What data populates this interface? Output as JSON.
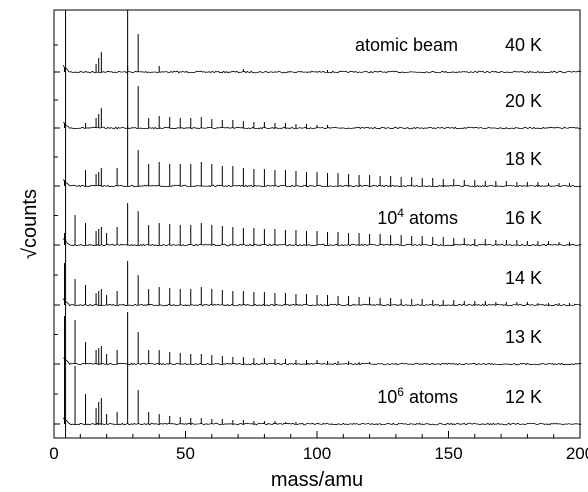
{
  "chart_data": {
    "type": "line",
    "title": "",
    "xlabel": "mass/amu",
    "ylabel": "√counts",
    "xlim": [
      0,
      200
    ],
    "xticks": [
      0,
      50,
      100,
      150,
      200
    ],
    "grid": false,
    "stacked_offset_traces": true,
    "series": [
      {
        "temperature": "40 K",
        "note": "atomic beam",
        "peaks": [
          {
            "x": 4,
            "h": 4
          },
          {
            "x": 16,
            "h": 8
          },
          {
            "x": 17,
            "h": 14
          },
          {
            "x": 18,
            "h": 20
          },
          {
            "x": 28,
            "h": 62
          },
          {
            "x": 32,
            "h": 38
          },
          {
            "x": 40,
            "h": 6
          },
          {
            "x": 72,
            "h": 3
          },
          {
            "x": 104,
            "h": 2
          }
        ]
      },
      {
        "temperature": "20 K",
        "note": "",
        "peaks": [
          {
            "x": 4,
            "h": 5
          },
          {
            "x": 12,
            "h": 5
          },
          {
            "x": 16,
            "h": 10
          },
          {
            "x": 17,
            "h": 14
          },
          {
            "x": 18,
            "h": 20
          },
          {
            "x": 28,
            "h": 62
          },
          {
            "x": 32,
            "h": 42
          },
          {
            "x": 36,
            "h": 10
          },
          {
            "x": 40,
            "h": 12
          },
          {
            "x": 44,
            "h": 11
          },
          {
            "x": 48,
            "h": 10
          },
          {
            "x": 52,
            "h": 10
          },
          {
            "x": 56,
            "h": 11
          },
          {
            "x": 60,
            "h": 9
          },
          {
            "x": 64,
            "h": 8
          },
          {
            "x": 68,
            "h": 8
          },
          {
            "x": 72,
            "h": 7
          },
          {
            "x": 76,
            "h": 6
          },
          {
            "x": 80,
            "h": 6
          },
          {
            "x": 84,
            "h": 5
          },
          {
            "x": 88,
            "h": 5
          },
          {
            "x": 92,
            "h": 4
          },
          {
            "x": 96,
            "h": 4
          },
          {
            "x": 100,
            "h": 3
          },
          {
            "x": 104,
            "h": 3
          }
        ]
      },
      {
        "temperature": "18 K",
        "note": "",
        "peaks": [
          {
            "x": 4,
            "h": 6
          },
          {
            "x": 12,
            "h": 16
          },
          {
            "x": 16,
            "h": 12
          },
          {
            "x": 17,
            "h": 14
          },
          {
            "x": 18,
            "h": 18
          },
          {
            "x": 24,
            "h": 18
          },
          {
            "x": 28,
            "h": 60
          },
          {
            "x": 32,
            "h": 36
          },
          {
            "x": 36,
            "h": 22
          },
          {
            "x": 40,
            "h": 24
          },
          {
            "x": 44,
            "h": 22
          },
          {
            "x": 48,
            "h": 22
          },
          {
            "x": 52,
            "h": 22
          },
          {
            "x": 56,
            "h": 24
          },
          {
            "x": 60,
            "h": 22
          },
          {
            "x": 64,
            "h": 20
          },
          {
            "x": 68,
            "h": 20
          },
          {
            "x": 72,
            "h": 18
          },
          {
            "x": 76,
            "h": 17
          },
          {
            "x": 80,
            "h": 17
          },
          {
            "x": 84,
            "h": 16
          },
          {
            "x": 88,
            "h": 16
          },
          {
            "x": 92,
            "h": 15
          },
          {
            "x": 96,
            "h": 14
          },
          {
            "x": 100,
            "h": 14
          },
          {
            "x": 104,
            "h": 13
          },
          {
            "x": 108,
            "h": 13
          },
          {
            "x": 112,
            "h": 12
          },
          {
            "x": 116,
            "h": 11
          },
          {
            "x": 120,
            "h": 11
          },
          {
            "x": 124,
            "h": 10
          },
          {
            "x": 128,
            "h": 10
          },
          {
            "x": 132,
            "h": 9
          },
          {
            "x": 136,
            "h": 9
          },
          {
            "x": 140,
            "h": 8
          },
          {
            "x": 144,
            "h": 8
          },
          {
            "x": 148,
            "h": 7
          },
          {
            "x": 152,
            "h": 7
          },
          {
            "x": 156,
            "h": 6
          },
          {
            "x": 160,
            "h": 6
          },
          {
            "x": 164,
            "h": 5
          },
          {
            "x": 168,
            "h": 5
          },
          {
            "x": 172,
            "h": 5
          },
          {
            "x": 176,
            "h": 4
          },
          {
            "x": 180,
            "h": 4
          },
          {
            "x": 184,
            "h": 4
          },
          {
            "x": 188,
            "h": 3
          },
          {
            "x": 192,
            "h": 3
          },
          {
            "x": 196,
            "h": 3
          },
          {
            "x": 200,
            "h": 3
          }
        ]
      },
      {
        "temperature": "16 K",
        "note": "10^4 atoms",
        "peaks": [
          {
            "x": 4,
            "h": 12
          },
          {
            "x": 8,
            "h": 30
          },
          {
            "x": 12,
            "h": 22
          },
          {
            "x": 16,
            "h": 14
          },
          {
            "x": 17,
            "h": 16
          },
          {
            "x": 18,
            "h": 18
          },
          {
            "x": 20,
            "h": 12
          },
          {
            "x": 24,
            "h": 18
          },
          {
            "x": 28,
            "h": 42
          },
          {
            "x": 32,
            "h": 34
          },
          {
            "x": 36,
            "h": 20
          },
          {
            "x": 40,
            "h": 22
          },
          {
            "x": 44,
            "h": 21
          },
          {
            "x": 48,
            "h": 20
          },
          {
            "x": 52,
            "h": 20
          },
          {
            "x": 56,
            "h": 22
          },
          {
            "x": 60,
            "h": 20
          },
          {
            "x": 64,
            "h": 19
          },
          {
            "x": 68,
            "h": 18
          },
          {
            "x": 72,
            "h": 17
          },
          {
            "x": 76,
            "h": 17
          },
          {
            "x": 80,
            "h": 16
          },
          {
            "x": 84,
            "h": 16
          },
          {
            "x": 88,
            "h": 15
          },
          {
            "x": 92,
            "h": 15
          },
          {
            "x": 96,
            "h": 14
          },
          {
            "x": 100,
            "h": 14
          },
          {
            "x": 104,
            "h": 13
          },
          {
            "x": 108,
            "h": 13
          },
          {
            "x": 112,
            "h": 12
          },
          {
            "x": 116,
            "h": 12
          },
          {
            "x": 120,
            "h": 11
          },
          {
            "x": 124,
            "h": 11
          },
          {
            "x": 128,
            "h": 10
          },
          {
            "x": 132,
            "h": 10
          },
          {
            "x": 136,
            "h": 9
          },
          {
            "x": 140,
            "h": 9
          },
          {
            "x": 144,
            "h": 8
          },
          {
            "x": 148,
            "h": 8
          },
          {
            "x": 152,
            "h": 7
          },
          {
            "x": 156,
            "h": 7
          },
          {
            "x": 160,
            "h": 6
          },
          {
            "x": 164,
            "h": 6
          },
          {
            "x": 168,
            "h": 5
          },
          {
            "x": 172,
            "h": 5
          },
          {
            "x": 176,
            "h": 5
          },
          {
            "x": 180,
            "h": 4
          },
          {
            "x": 184,
            "h": 4
          },
          {
            "x": 188,
            "h": 4
          },
          {
            "x": 192,
            "h": 3
          },
          {
            "x": 196,
            "h": 3
          },
          {
            "x": 200,
            "h": 3
          }
        ]
      },
      {
        "temperature": "14 K",
        "note": "",
        "peaks": [
          {
            "x": 4,
            "h": 42
          },
          {
            "x": 8,
            "h": 26
          },
          {
            "x": 12,
            "h": 20
          },
          {
            "x": 16,
            "h": 12
          },
          {
            "x": 17,
            "h": 14
          },
          {
            "x": 18,
            "h": 16
          },
          {
            "x": 20,
            "h": 10
          },
          {
            "x": 24,
            "h": 14
          },
          {
            "x": 28,
            "h": 44
          },
          {
            "x": 32,
            "h": 30
          },
          {
            "x": 36,
            "h": 16
          },
          {
            "x": 40,
            "h": 18
          },
          {
            "x": 44,
            "h": 17
          },
          {
            "x": 48,
            "h": 16
          },
          {
            "x": 52,
            "h": 16
          },
          {
            "x": 56,
            "h": 18
          },
          {
            "x": 60,
            "h": 16
          },
          {
            "x": 64,
            "h": 15
          },
          {
            "x": 68,
            "h": 14
          },
          {
            "x": 72,
            "h": 14
          },
          {
            "x": 76,
            "h": 13
          },
          {
            "x": 80,
            "h": 13
          },
          {
            "x": 84,
            "h": 12
          },
          {
            "x": 88,
            "h": 12
          },
          {
            "x": 92,
            "h": 11
          },
          {
            "x": 96,
            "h": 11
          },
          {
            "x": 100,
            "h": 10
          },
          {
            "x": 104,
            "h": 10
          },
          {
            "x": 108,
            "h": 9
          },
          {
            "x": 112,
            "h": 9
          },
          {
            "x": 116,
            "h": 8
          },
          {
            "x": 120,
            "h": 8
          },
          {
            "x": 124,
            "h": 7
          },
          {
            "x": 128,
            "h": 7
          },
          {
            "x": 132,
            "h": 6
          },
          {
            "x": 136,
            "h": 6
          },
          {
            "x": 140,
            "h": 6
          },
          {
            "x": 144,
            "h": 5
          },
          {
            "x": 148,
            "h": 5
          },
          {
            "x": 152,
            "h": 5
          },
          {
            "x": 156,
            "h": 4
          },
          {
            "x": 160,
            "h": 4
          },
          {
            "x": 164,
            "h": 4
          },
          {
            "x": 168,
            "h": 3
          },
          {
            "x": 172,
            "h": 3
          },
          {
            "x": 176,
            "h": 3
          },
          {
            "x": 180,
            "h": 3
          },
          {
            "x": 184,
            "h": 2
          },
          {
            "x": 188,
            "h": 2
          },
          {
            "x": 192,
            "h": 2
          },
          {
            "x": 196,
            "h": 2
          },
          {
            "x": 200,
            "h": 2
          }
        ]
      },
      {
        "temperature": "13 K",
        "note": "",
        "peaks": [
          {
            "x": 4,
            "h": 48
          },
          {
            "x": 8,
            "h": 44
          },
          {
            "x": 12,
            "h": 22
          },
          {
            "x": 16,
            "h": 14
          },
          {
            "x": 17,
            "h": 16
          },
          {
            "x": 18,
            "h": 18
          },
          {
            "x": 20,
            "h": 10
          },
          {
            "x": 24,
            "h": 14
          },
          {
            "x": 28,
            "h": 52
          },
          {
            "x": 32,
            "h": 32
          },
          {
            "x": 36,
            "h": 14
          },
          {
            "x": 40,
            "h": 14
          },
          {
            "x": 44,
            "h": 12
          },
          {
            "x": 48,
            "h": 11
          },
          {
            "x": 52,
            "h": 10
          },
          {
            "x": 56,
            "h": 10
          },
          {
            "x": 60,
            "h": 9
          },
          {
            "x": 64,
            "h": 8
          },
          {
            "x": 68,
            "h": 7
          },
          {
            "x": 72,
            "h": 7
          },
          {
            "x": 76,
            "h": 6
          },
          {
            "x": 80,
            "h": 6
          },
          {
            "x": 84,
            "h": 5
          },
          {
            "x": 88,
            "h": 5
          },
          {
            "x": 92,
            "h": 4
          },
          {
            "x": 96,
            "h": 4
          },
          {
            "x": 100,
            "h": 4
          },
          {
            "x": 104,
            "h": 3
          },
          {
            "x": 108,
            "h": 3
          },
          {
            "x": 112,
            "h": 3
          },
          {
            "x": 116,
            "h": 2
          },
          {
            "x": 120,
            "h": 2
          }
        ]
      },
      {
        "temperature": "12 K",
        "note": "10^6 atoms",
        "peaks": [
          {
            "x": 4,
            "h": 60
          },
          {
            "x": 8,
            "h": 58
          },
          {
            "x": 12,
            "h": 30
          },
          {
            "x": 16,
            "h": 16
          },
          {
            "x": 17,
            "h": 22
          },
          {
            "x": 18,
            "h": 26
          },
          {
            "x": 20,
            "h": 10
          },
          {
            "x": 24,
            "h": 12
          },
          {
            "x": 28,
            "h": 62
          },
          {
            "x": 32,
            "h": 34
          },
          {
            "x": 36,
            "h": 12
          },
          {
            "x": 40,
            "h": 10
          },
          {
            "x": 44,
            "h": 8
          },
          {
            "x": 48,
            "h": 7
          },
          {
            "x": 52,
            "h": 6
          },
          {
            "x": 56,
            "h": 6
          },
          {
            "x": 60,
            "h": 5
          },
          {
            "x": 64,
            "h": 5
          },
          {
            "x": 68,
            "h": 4
          },
          {
            "x": 72,
            "h": 4
          },
          {
            "x": 76,
            "h": 3
          },
          {
            "x": 80,
            "h": 3
          },
          {
            "x": 84,
            "h": 3
          },
          {
            "x": 88,
            "h": 2
          },
          {
            "x": 92,
            "h": 2
          }
        ]
      }
    ]
  }
}
